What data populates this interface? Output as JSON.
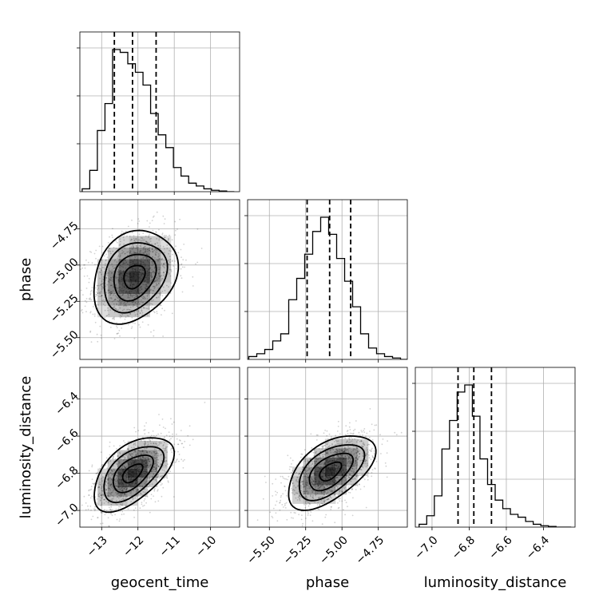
{
  "chart_data": {
    "type": "corner",
    "parameters": [
      "geocent_time",
      "phase",
      "luminosity_distance"
    ],
    "axes": {
      "geocent_time": {
        "label": "geocent_time",
        "range": [
          -13.6,
          -9.2
        ],
        "ticks": [
          -13,
          -12,
          -11,
          -10
        ],
        "tick_labels": [
          "−13",
          "−12",
          "−11",
          "−10"
        ]
      },
      "phase": {
        "label": "phase",
        "range": [
          -5.65,
          -4.55
        ],
        "ticks": [
          -5.5,
          -5.25,
          -5.0,
          -4.75
        ],
        "tick_labels": [
          "−5.50",
          "−5.25",
          "−5.00",
          "−4.75"
        ]
      },
      "luminosity_distance": {
        "label": "luminosity_distance",
        "range": [
          -7.09,
          -6.23
        ],
        "ticks": [
          -7.0,
          -6.8,
          -6.6,
          -6.4
        ],
        "tick_labels": [
          "−7.0",
          "−6.8",
          "−6.6",
          "−6.4"
        ]
      }
    },
    "diagonal_histograms": [
      {
        "parameter": "geocent_time",
        "bins": 20,
        "counts": [
          2,
          15,
          43,
          62,
          100,
          98,
          90,
          84,
          75,
          55,
          40,
          31,
          17,
          11,
          6,
          4,
          2,
          1,
          0.5,
          0
        ],
        "quantiles": [
          -12.65,
          -12.15,
          -11.5
        ]
      },
      {
        "parameter": "phase",
        "bins": 20,
        "counts": [
          2,
          4,
          7,
          13,
          18,
          42,
          57,
          74,
          90,
          100,
          88,
          71,
          55,
          37,
          18,
          8,
          4,
          2,
          1,
          0
        ],
        "quantiles": [
          -5.24,
          -5.085,
          -4.94
        ]
      },
      {
        "parameter": "luminosity_distance",
        "bins": 20,
        "counts": [
          2,
          8,
          22,
          55,
          75,
          95,
          100,
          78,
          48,
          30,
          19,
          13,
          9,
          7,
          4,
          2,
          1,
          0.5,
          0,
          0
        ],
        "quantiles": [
          -6.86,
          -6.775,
          -6.68
        ]
      }
    ],
    "pair_plots": [
      {
        "x": "geocent_time",
        "y": "phase",
        "mean": [
          -12.1,
          -5.08
        ],
        "sd": [
          0.58,
          0.16
        ],
        "corr": 0.25
      },
      {
        "x": "geocent_time",
        "y": "luminosity_distance",
        "mean": [
          -12.15,
          -6.8
        ],
        "sd": [
          0.55,
          0.1
        ],
        "corr": 0.55
      },
      {
        "x": "phase",
        "y": "luminosity_distance",
        "mean": [
          -5.08,
          -6.79
        ],
        "sd": [
          0.15,
          0.1
        ],
        "corr": 0.55
      }
    ],
    "contour_levels": [
      0.5,
      1.0,
      1.5,
      2.0
    ],
    "grid": true,
    "colors": {
      "line": "#000000",
      "grid": "#b0b0b0",
      "density": "#000000"
    }
  }
}
